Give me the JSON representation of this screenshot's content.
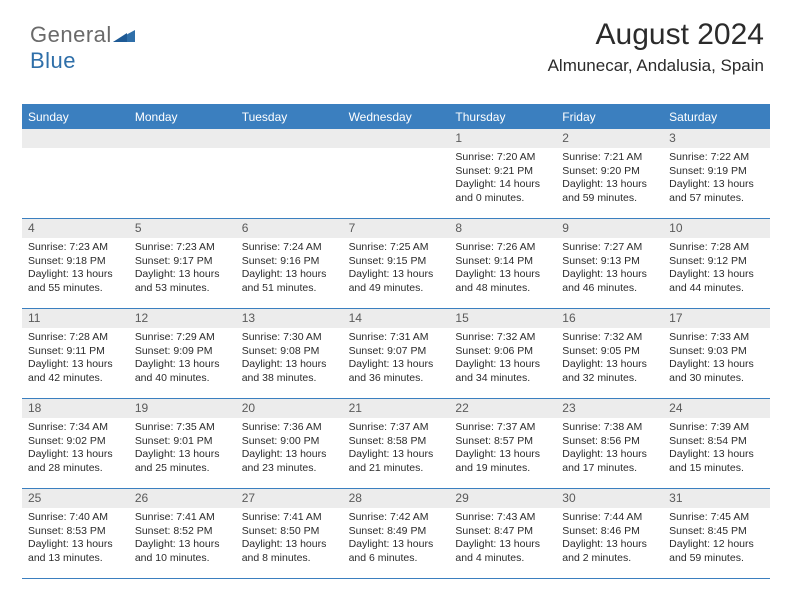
{
  "logo": {
    "word1": "General",
    "word2": "Blue"
  },
  "title": {
    "month": "August 2024",
    "location": "Almunecar, Andalusia, Spain"
  },
  "colors": {
    "header_bg": "#3b7fbf",
    "header_text": "#ffffff",
    "daynum_bg": "#ececec",
    "daynum_text": "#5a5a5a",
    "body_text": "#2b2b2b",
    "logo_gray": "#6a6a6a",
    "logo_blue": "#2f6fa9"
  },
  "daysOfWeek": [
    "Sunday",
    "Monday",
    "Tuesday",
    "Wednesday",
    "Thursday",
    "Friday",
    "Saturday"
  ],
  "startOffset": 4,
  "days": [
    {
      "n": "1",
      "sr": "7:20 AM",
      "ss": "9:21 PM",
      "dl": "14 hours and 0 minutes."
    },
    {
      "n": "2",
      "sr": "7:21 AM",
      "ss": "9:20 PM",
      "dl": "13 hours and 59 minutes."
    },
    {
      "n": "3",
      "sr": "7:22 AM",
      "ss": "9:19 PM",
      "dl": "13 hours and 57 minutes."
    },
    {
      "n": "4",
      "sr": "7:23 AM",
      "ss": "9:18 PM",
      "dl": "13 hours and 55 minutes."
    },
    {
      "n": "5",
      "sr": "7:23 AM",
      "ss": "9:17 PM",
      "dl": "13 hours and 53 minutes."
    },
    {
      "n": "6",
      "sr": "7:24 AM",
      "ss": "9:16 PM",
      "dl": "13 hours and 51 minutes."
    },
    {
      "n": "7",
      "sr": "7:25 AM",
      "ss": "9:15 PM",
      "dl": "13 hours and 49 minutes."
    },
    {
      "n": "8",
      "sr": "7:26 AM",
      "ss": "9:14 PM",
      "dl": "13 hours and 48 minutes."
    },
    {
      "n": "9",
      "sr": "7:27 AM",
      "ss": "9:13 PM",
      "dl": "13 hours and 46 minutes."
    },
    {
      "n": "10",
      "sr": "7:28 AM",
      "ss": "9:12 PM",
      "dl": "13 hours and 44 minutes."
    },
    {
      "n": "11",
      "sr": "7:28 AM",
      "ss": "9:11 PM",
      "dl": "13 hours and 42 minutes."
    },
    {
      "n": "12",
      "sr": "7:29 AM",
      "ss": "9:09 PM",
      "dl": "13 hours and 40 minutes."
    },
    {
      "n": "13",
      "sr": "7:30 AM",
      "ss": "9:08 PM",
      "dl": "13 hours and 38 minutes."
    },
    {
      "n": "14",
      "sr": "7:31 AM",
      "ss": "9:07 PM",
      "dl": "13 hours and 36 minutes."
    },
    {
      "n": "15",
      "sr": "7:32 AM",
      "ss": "9:06 PM",
      "dl": "13 hours and 34 minutes."
    },
    {
      "n": "16",
      "sr": "7:32 AM",
      "ss": "9:05 PM",
      "dl": "13 hours and 32 minutes."
    },
    {
      "n": "17",
      "sr": "7:33 AM",
      "ss": "9:03 PM",
      "dl": "13 hours and 30 minutes."
    },
    {
      "n": "18",
      "sr": "7:34 AM",
      "ss": "9:02 PM",
      "dl": "13 hours and 28 minutes."
    },
    {
      "n": "19",
      "sr": "7:35 AM",
      "ss": "9:01 PM",
      "dl": "13 hours and 25 minutes."
    },
    {
      "n": "20",
      "sr": "7:36 AM",
      "ss": "9:00 PM",
      "dl": "13 hours and 23 minutes."
    },
    {
      "n": "21",
      "sr": "7:37 AM",
      "ss": "8:58 PM",
      "dl": "13 hours and 21 minutes."
    },
    {
      "n": "22",
      "sr": "7:37 AM",
      "ss": "8:57 PM",
      "dl": "13 hours and 19 minutes."
    },
    {
      "n": "23",
      "sr": "7:38 AM",
      "ss": "8:56 PM",
      "dl": "13 hours and 17 minutes."
    },
    {
      "n": "24",
      "sr": "7:39 AM",
      "ss": "8:54 PM",
      "dl": "13 hours and 15 minutes."
    },
    {
      "n": "25",
      "sr": "7:40 AM",
      "ss": "8:53 PM",
      "dl": "13 hours and 13 minutes."
    },
    {
      "n": "26",
      "sr": "7:41 AM",
      "ss": "8:52 PM",
      "dl": "13 hours and 10 minutes."
    },
    {
      "n": "27",
      "sr": "7:41 AM",
      "ss": "8:50 PM",
      "dl": "13 hours and 8 minutes."
    },
    {
      "n": "28",
      "sr": "7:42 AM",
      "ss": "8:49 PM",
      "dl": "13 hours and 6 minutes."
    },
    {
      "n": "29",
      "sr": "7:43 AM",
      "ss": "8:47 PM",
      "dl": "13 hours and 4 minutes."
    },
    {
      "n": "30",
      "sr": "7:44 AM",
      "ss": "8:46 PM",
      "dl": "13 hours and 2 minutes."
    },
    {
      "n": "31",
      "sr": "7:45 AM",
      "ss": "8:45 PM",
      "dl": "12 hours and 59 minutes."
    }
  ],
  "labels": {
    "sunrise": "Sunrise:",
    "sunset": "Sunset:",
    "daylight": "Daylight:"
  }
}
